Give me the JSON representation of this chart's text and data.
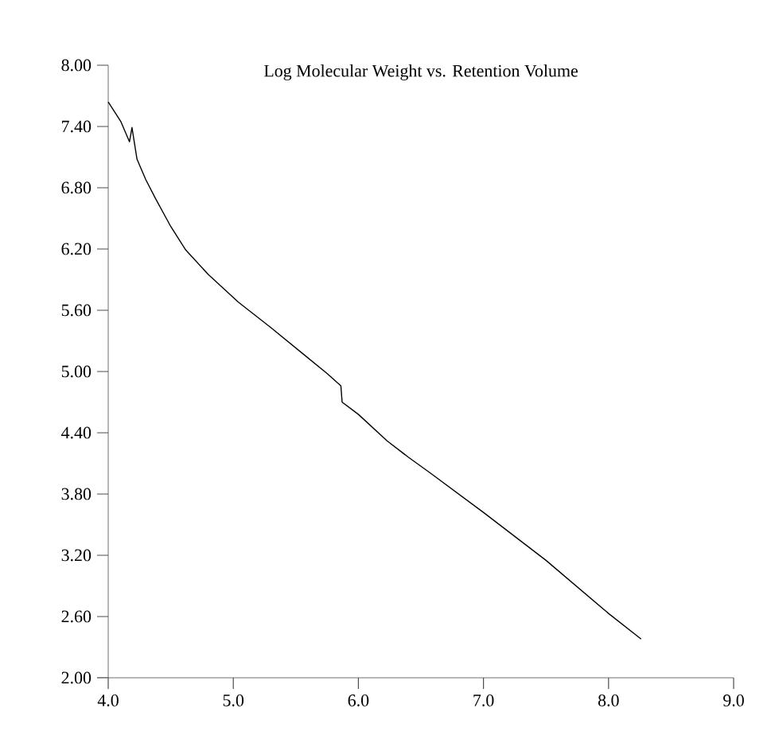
{
  "chart_data": {
    "type": "line",
    "title": "Log Molecular Weight vs. Retention Volume",
    "x": [
      4.0,
      4.1,
      4.17,
      4.19,
      4.23,
      4.3,
      4.38,
      4.5,
      4.62,
      4.8,
      5.04,
      5.3,
      5.55,
      5.75,
      5.86,
      5.87,
      6.0,
      6.23,
      6.4,
      6.57,
      7.0,
      7.5,
      8.0,
      8.26
    ],
    "series": [
      {
        "color": "#000000",
        "values": [
          7.64,
          7.45,
          7.25,
          7.39,
          7.08,
          6.88,
          6.69,
          6.42,
          6.19,
          5.95,
          5.68,
          5.43,
          5.18,
          4.98,
          4.86,
          4.7,
          4.58,
          4.32,
          4.16,
          4.01,
          3.62,
          3.15,
          2.63,
          2.38
        ]
      }
    ],
    "xlim": [
      4.0,
      9.0
    ],
    "ylim": [
      2.0,
      8.0
    ],
    "xticks": [
      {
        "value": 4,
        "label": "4.0"
      },
      {
        "value": 5,
        "label": "5.0"
      },
      {
        "value": 6,
        "label": "6.0"
      },
      {
        "value": 7,
        "label": "7.0"
      },
      {
        "value": 8,
        "label": "8.0"
      },
      {
        "value": 9,
        "label": "9.0"
      }
    ],
    "yticks": [
      {
        "value": 2,
        "label": "2.00"
      },
      {
        "value": 2.6,
        "label": "2.60"
      },
      {
        "value": 3.2,
        "label": "3.20"
      },
      {
        "value": 3.8,
        "label": "3.80"
      },
      {
        "value": 4.4,
        "label": "4.40"
      },
      {
        "value": 5,
        "label": "5.00"
      },
      {
        "value": 5.6,
        "label": "5.60"
      },
      {
        "value": 6.2,
        "label": "6.20"
      },
      {
        "value": 6.8,
        "label": "6.80"
      },
      {
        "value": 7.4,
        "label": "7.40"
      },
      {
        "value": 8,
        "label": "8.00"
      }
    ],
    "grid": false,
    "marker": "none",
    "line_style": "solid"
  }
}
